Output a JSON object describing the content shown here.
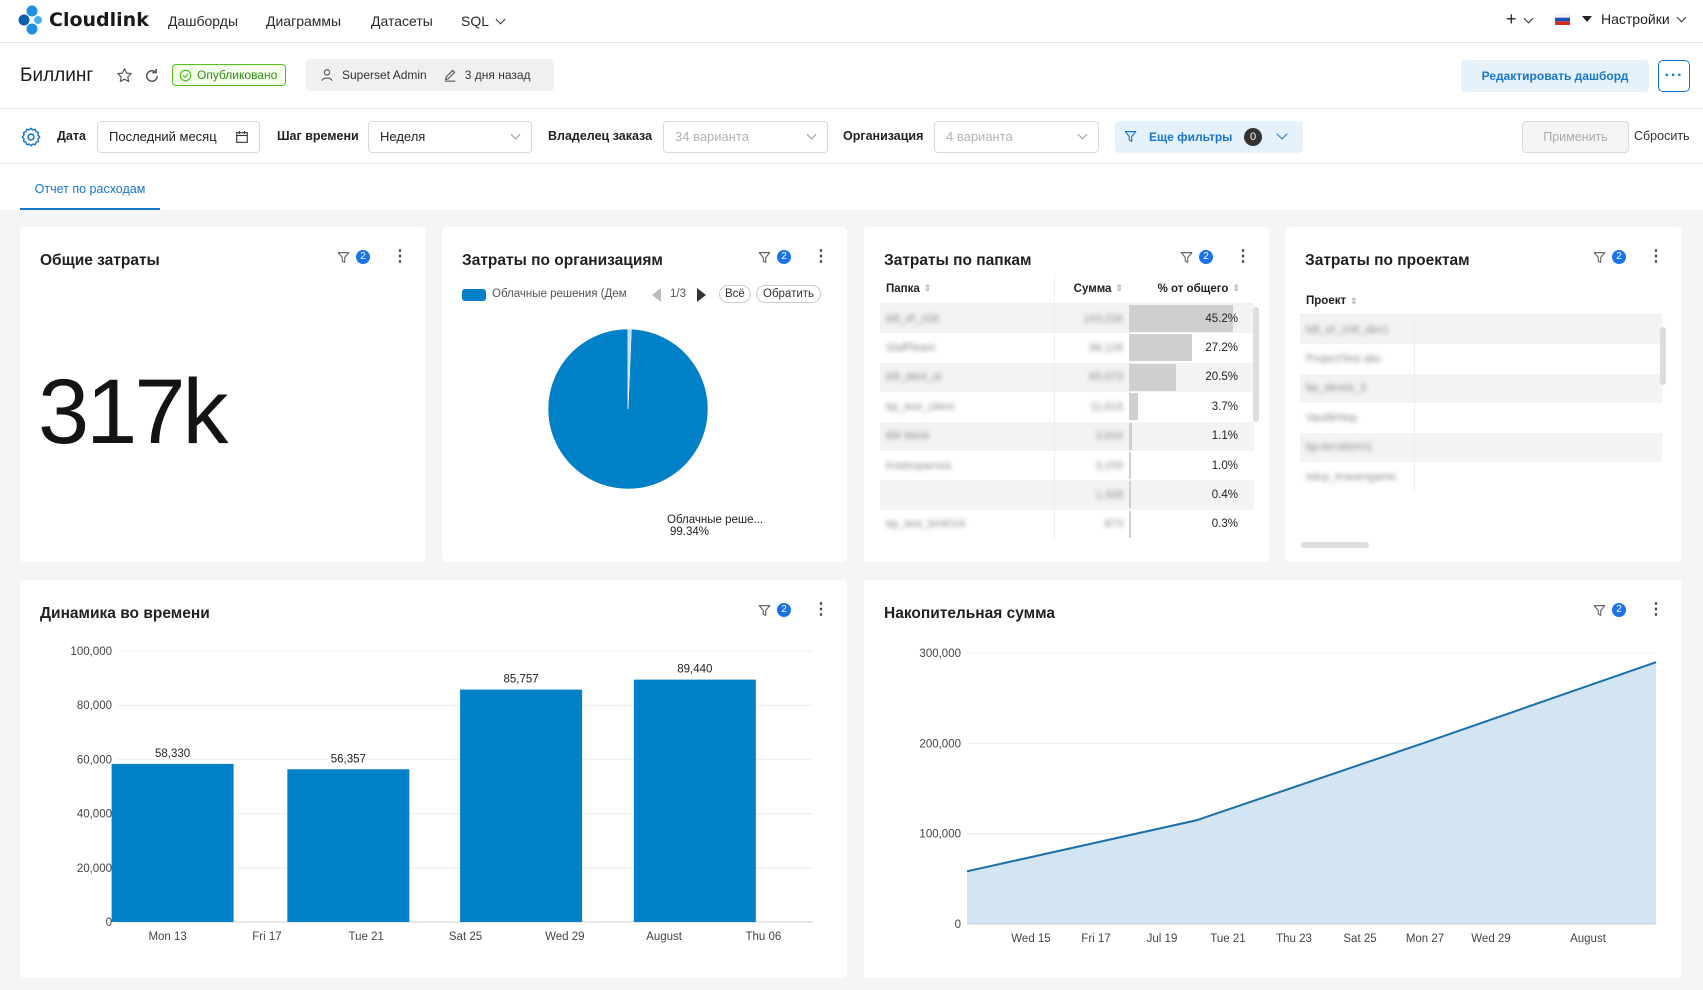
{
  "app": {
    "logo_text": "Cloudlink",
    "nav": [
      "Дашборды",
      "Диаграммы",
      "Датасеты",
      "SQL"
    ],
    "settings_label": "Настройки",
    "add_label": "+"
  },
  "header": {
    "title": "Биллинг",
    "status": "Опубликовано",
    "owner": "Superset Admin",
    "modified": "3 дня назад",
    "edit_label": "Редактировать дашборд",
    "more_label": "···"
  },
  "filters": {
    "date_label": "Дата",
    "date_value": "Последний месяц",
    "grain_label": "Шаг времени",
    "grain_value": "Неделя",
    "owner_label": "Владелец заказа",
    "owner_placeholder": "34 варианта",
    "org_label": "Организация",
    "org_placeholder": "4 варианта",
    "more_filters_label": "Еще фильтры",
    "more_filters_count": "0",
    "apply_label": "Применить",
    "reset_label": "Сбросить"
  },
  "tabs": [
    {
      "label": "Отчет по расходам"
    }
  ],
  "cards": {
    "total": {
      "title": "Общие затраты",
      "badge": "2",
      "value": "317k"
    },
    "orgs": {
      "title": "Затраты по организациям",
      "badge": "2",
      "legend_item": "Облачные решения (Дем",
      "pager": "1/3",
      "all_label": "Всё",
      "invert_label": "Обратить",
      "slice_label": "Облачные реше...",
      "slice_pct": "99.34%"
    },
    "folders": {
      "title": "Затраты по папкам",
      "badge": "2",
      "columns": [
        "Папка",
        "Сумма",
        "% от общего"
      ],
      "rows": [
        {
          "name": "bill_ef_106",
          "sum": "143,226",
          "pct": "45.2%",
          "share": 45.2
        },
        {
          "name": "StaffTeam",
          "sum": "86,128",
          "pct": "27.2%",
          "share": 27.2
        },
        {
          "name": "bill_devt_ol",
          "sum": "65,073",
          "pct": "20.5%",
          "share": 20.5
        },
        {
          "name": "bp_test_client",
          "sum": "11,818",
          "pct": "3.7%",
          "share": 3.7
        },
        {
          "name": "Bill Work",
          "sum": "3,603",
          "pct": "1.1%",
          "share": 1.1
        },
        {
          "name": "Kostroparnus",
          "sum": "3,159",
          "pct": "1.0%",
          "share": 1.0
        },
        {
          "name": "",
          "sum": "1,308",
          "pct": "0.4%",
          "share": 0.4
        },
        {
          "name": "bp_test_b04019",
          "sum": "873",
          "pct": "0.3%",
          "share": 0.3
        }
      ]
    },
    "projects": {
      "title": "Затраты по проектам",
      "badge": "2",
      "column": "Проект",
      "rows": [
        "bill_ef_106_dev1",
        "ProjectTest abc",
        "bp_devtst_3",
        "Vaultkhtop",
        "bp-terraform1",
        "sdcp_kraxengame"
      ]
    },
    "dynamics": {
      "title": "Динамика во времени",
      "badge": "2"
    },
    "cumulative": {
      "title": "Накопительная сумма",
      "badge": "2"
    }
  },
  "chart_data": [
    {
      "type": "pie",
      "categories": [
        "Облачные решения (Дем",
        "other"
      ],
      "values": [
        99.34,
        0.66
      ]
    },
    {
      "type": "bar",
      "categories": [
        "Mon 13",
        "Fri 17",
        "Tue 21",
        "Sat 25",
        "Wed 29",
        "August",
        "Thu 06"
      ],
      "bars": [
        {
          "x": "Mon 13",
          "value": 58330,
          "label": "58,330"
        },
        {
          "x": "Tue 21",
          "value": 56357,
          "label": "56,357"
        },
        {
          "x": "Wed 29",
          "value": 85757,
          "label": "85,757"
        },
        {
          "x": "Thu 06",
          "value": 89440,
          "label": "89,440"
        }
      ],
      "y_ticks": [
        "100,000",
        "80,000",
        "60,000",
        "40,000",
        "20,000",
        "0"
      ],
      "ylim": [
        0,
        100000
      ]
    },
    {
      "type": "area",
      "x_ticks": [
        "Wed 15",
        "Fri 17",
        "Jul 19",
        "Tue 21",
        "Thu 23",
        "Sat 25",
        "Mon 27",
        "Wed 29",
        "August"
      ],
      "values": [
        58330,
        114687,
        200444,
        289884
      ],
      "y_ticks": [
        "300,000",
        "200,000",
        "100,000",
        "0"
      ],
      "ylim": [
        0,
        300000
      ],
      "color": "#1a6fab",
      "fill": "#d3e5f3"
    }
  ],
  "colors": {
    "accent": "#1677c8",
    "series": "#0080c6",
    "published": "#52c41a"
  }
}
